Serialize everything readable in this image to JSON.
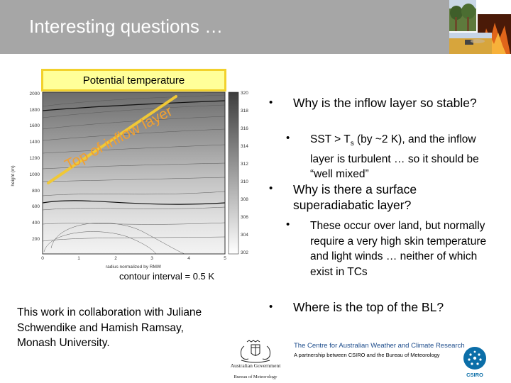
{
  "slide": {
    "title": "Interesting questions …"
  },
  "plot": {
    "box_label": "Potential temperature",
    "annotation": "Top of inflow layer",
    "contour_note": "contour interval = 0.5 K",
    "chart_data": {
      "type": "heatmap",
      "title": "",
      "xlabel": "radius normalized by RMW",
      "ylabel": "height (m)",
      "xlim": [
        0,
        5
      ],
      "ylim": [
        0,
        2000
      ],
      "x_ticks": [
        "0",
        "1",
        "2",
        "3",
        "4",
        "5"
      ],
      "y_ticks": [
        "200",
        "400",
        "600",
        "800",
        "1000",
        "1200",
        "1400",
        "1600",
        "1800",
        "2000"
      ],
      "colorbar_ticks": [
        "302",
        "304",
        "306",
        "308",
        "310",
        "312",
        "314",
        "316",
        "318",
        "320"
      ],
      "colorbar_range": [
        302,
        320
      ],
      "colormap": "grayscale"
    }
  },
  "collaboration": "This work in collaboration with Juliane Schwendike and Hamish Ramsay, Monash University.",
  "bullets": {
    "q1": "Why is the inflow layer so stable?",
    "a1": "SST > Ts (by ~2 K), and the inflow layer is turbulent … so it should be “well mixed”",
    "q2": "Why is there a surface superadiabatic layer?",
    "a2": "These occur over land, but normally require a very high skin temperature and light winds … neither of which exist in TCs",
    "q3": "Where is the top of the BL?"
  },
  "footer": {
    "gov_line1": "Australian Government",
    "gov_line2": "Bureau of Meteorology",
    "centre_line1": "The Centre for Australian Weather and Climate Research",
    "centre_line2": "A partnership between CSIRO and the Bureau of Meteorology",
    "csiro_label": "CSIRO"
  },
  "colors": {
    "header_bg": "#a6a6a6",
    "label_box_fill": "#ffff99",
    "label_box_border": "#f2d12c",
    "annotation_orange": "#f0a032",
    "centre_blue": "#1a4a8a"
  }
}
